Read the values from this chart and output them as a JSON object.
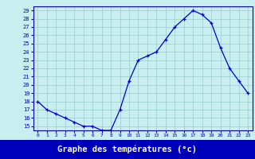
{
  "hours": [
    0,
    1,
    2,
    3,
    4,
    5,
    6,
    7,
    8,
    9,
    10,
    11,
    12,
    13,
    14,
    15,
    16,
    17,
    18,
    19,
    20,
    21,
    22,
    23
  ],
  "temps": [
    18,
    17,
    16.5,
    16,
    15.5,
    15,
    15,
    14.5,
    14.5,
    17,
    20.5,
    23,
    23.5,
    24,
    25.5,
    27,
    28,
    29,
    28.5,
    27.5,
    24.5,
    22,
    20.5,
    19
  ],
  "xlabel": "Graphe des températures (°c)",
  "ylim_min": 14.5,
  "ylim_max": 29.5,
  "yticks": [
    15,
    16,
    17,
    18,
    19,
    20,
    21,
    22,
    23,
    24,
    25,
    26,
    27,
    28,
    29
  ],
  "line_color": "#0000cc",
  "bg_color": "#c8eef0",
  "grid_color": "#99cccc",
  "axis_color": "#0000aa",
  "tick_label_color": "#0000aa",
  "xlabel_bg": "#0000bb",
  "xlabel_fg": "#ffffff",
  "xlabel_fontsize": 7.5
}
